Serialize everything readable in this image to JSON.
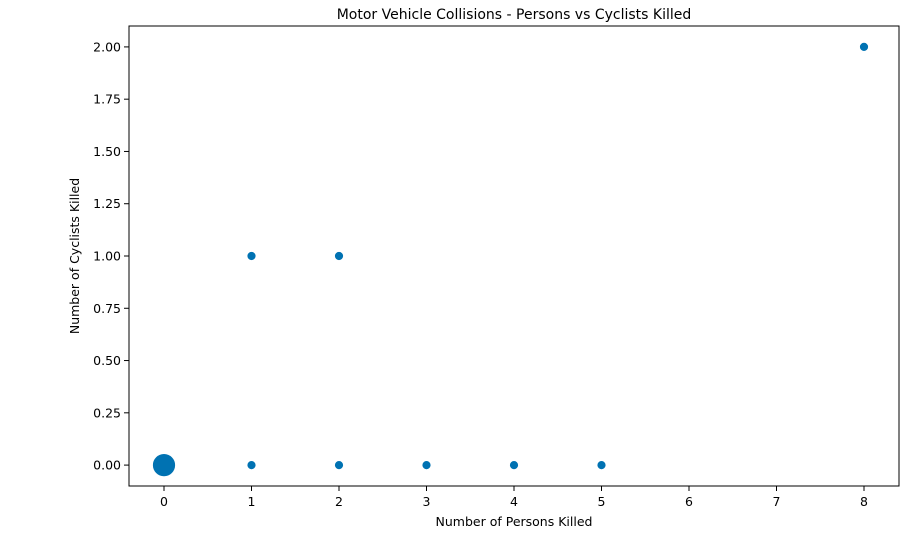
{
  "chart_data": {
    "type": "scatter",
    "title": "Motor Vehicle Collisions - Persons vs Cyclists Killed",
    "xlabel": "Number of Persons Killed",
    "ylabel": "Number of Cyclists Killed",
    "xlim": [
      -0.4,
      8.4
    ],
    "ylim": [
      -0.1,
      2.1
    ],
    "xticks": [
      0,
      1,
      2,
      3,
      4,
      5,
      6,
      7,
      8
    ],
    "xtick_labels": [
      "0",
      "1",
      "2",
      "3",
      "4",
      "5",
      "6",
      "7",
      "8"
    ],
    "yticks": [
      0,
      0.25,
      0.5,
      0.75,
      1.0,
      1.25,
      1.5,
      1.75,
      2.0
    ],
    "ytick_labels": [
      "0.00",
      "0.25",
      "0.50",
      "0.75",
      "1.00",
      "1.25",
      "1.50",
      "1.75",
      "2.00"
    ],
    "grid": false,
    "marker_color": "#0072B2",
    "points": [
      {
        "x": 0,
        "y": 0,
        "size": "large"
      },
      {
        "x": 1,
        "y": 0,
        "size": "small"
      },
      {
        "x": 2,
        "y": 0,
        "size": "small"
      },
      {
        "x": 3,
        "y": 0,
        "size": "small"
      },
      {
        "x": 4,
        "y": 0,
        "size": "small"
      },
      {
        "x": 5,
        "y": 0,
        "size": "small"
      },
      {
        "x": 1,
        "y": 1,
        "size": "small"
      },
      {
        "x": 2,
        "y": 1,
        "size": "small"
      },
      {
        "x": 8,
        "y": 2,
        "size": "small"
      }
    ]
  }
}
